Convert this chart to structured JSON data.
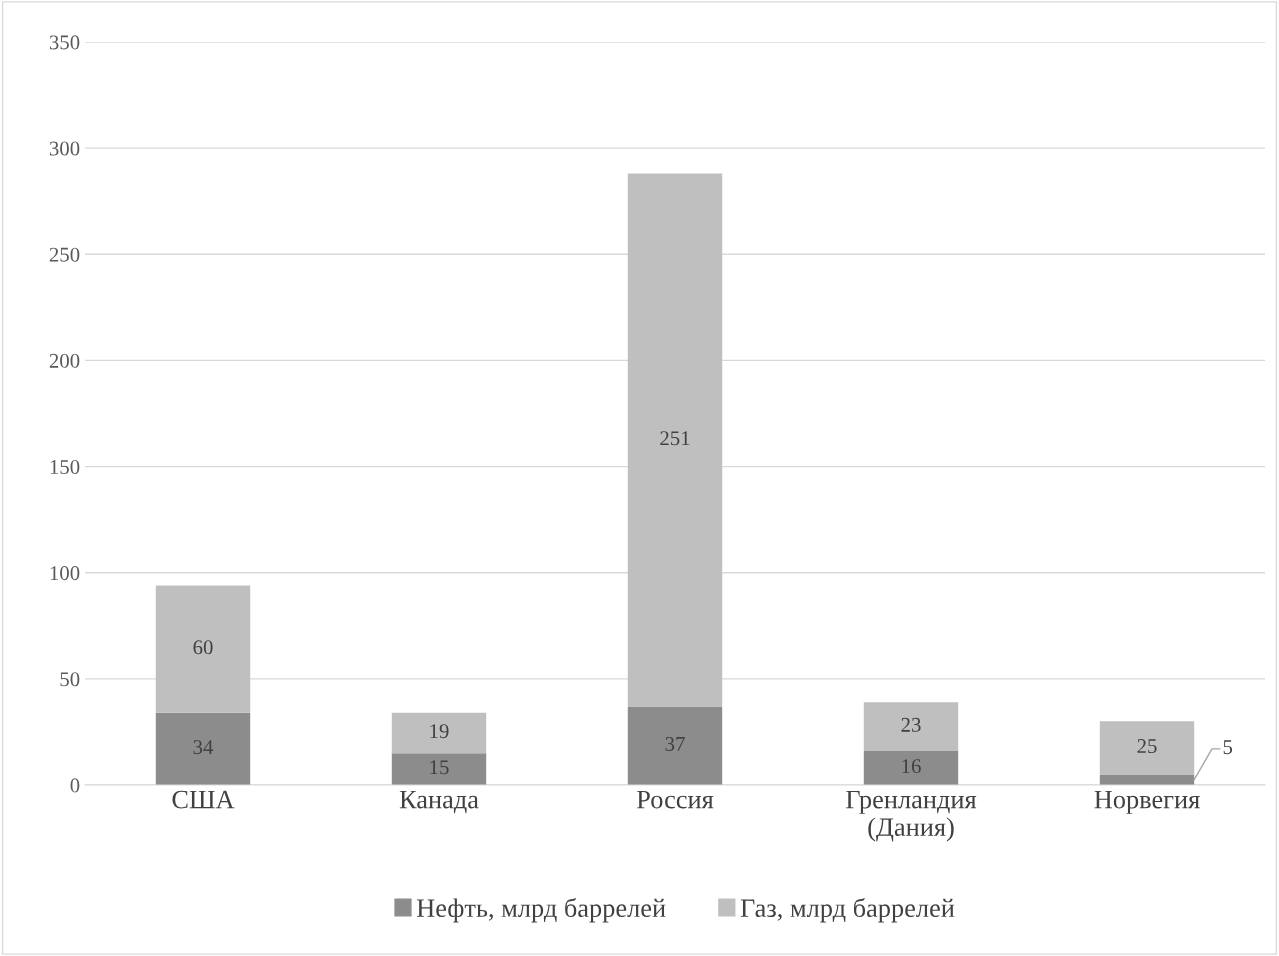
{
  "chart_data": {
    "type": "bar",
    "stacked": true,
    "categories": [
      "США",
      "Канада",
      "Россия",
      "Гренландия\n(Дания)",
      "Норвегия"
    ],
    "series": [
      {
        "name": "Нефть, млрд баррелей",
        "color": "#8c8c8c",
        "values": [
          34,
          15,
          37,
          16,
          5
        ]
      },
      {
        "name": "Газ, млрд баррелей",
        "color": "#bfbfbf",
        "values": [
          60,
          19,
          251,
          23,
          25
        ]
      }
    ],
    "ylim": [
      0,
      350
    ],
    "yticks": [
      0,
      50,
      100,
      150,
      200,
      250,
      300,
      350
    ],
    "grid": "y",
    "legend": "bottom",
    "data_labels": true
  }
}
